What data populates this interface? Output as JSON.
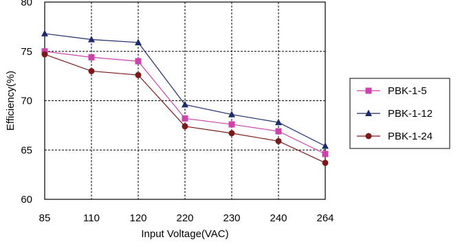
{
  "chart_data": {
    "type": "line",
    "xlabel": "Input Voltage(VAC)",
    "ylabel": "Efficiency(%)",
    "ylim": [
      60,
      80
    ],
    "yticks": [
      60,
      65,
      70,
      75,
      80
    ],
    "x": [
      "85",
      "110",
      "120",
      "220",
      "230",
      "240",
      "264"
    ],
    "grid": "dashed",
    "legend": "right",
    "series": [
      {
        "name": "PBK-1-5",
        "color": "#cc44aa",
        "marker": "square",
        "values": [
          75.0,
          74.4,
          74.0,
          68.2,
          67.6,
          66.9,
          64.6
        ]
      },
      {
        "name": "PBK-1-12",
        "color": "#1f2a6b",
        "marker": "triangle",
        "values": [
          76.8,
          76.2,
          75.9,
          69.6,
          68.6,
          67.8,
          65.4
        ]
      },
      {
        "name": "PBK-1-24",
        "color": "#7a1a1a",
        "marker": "circle",
        "values": [
          74.7,
          73.0,
          72.6,
          67.4,
          66.7,
          65.9,
          63.7
        ]
      }
    ]
  }
}
